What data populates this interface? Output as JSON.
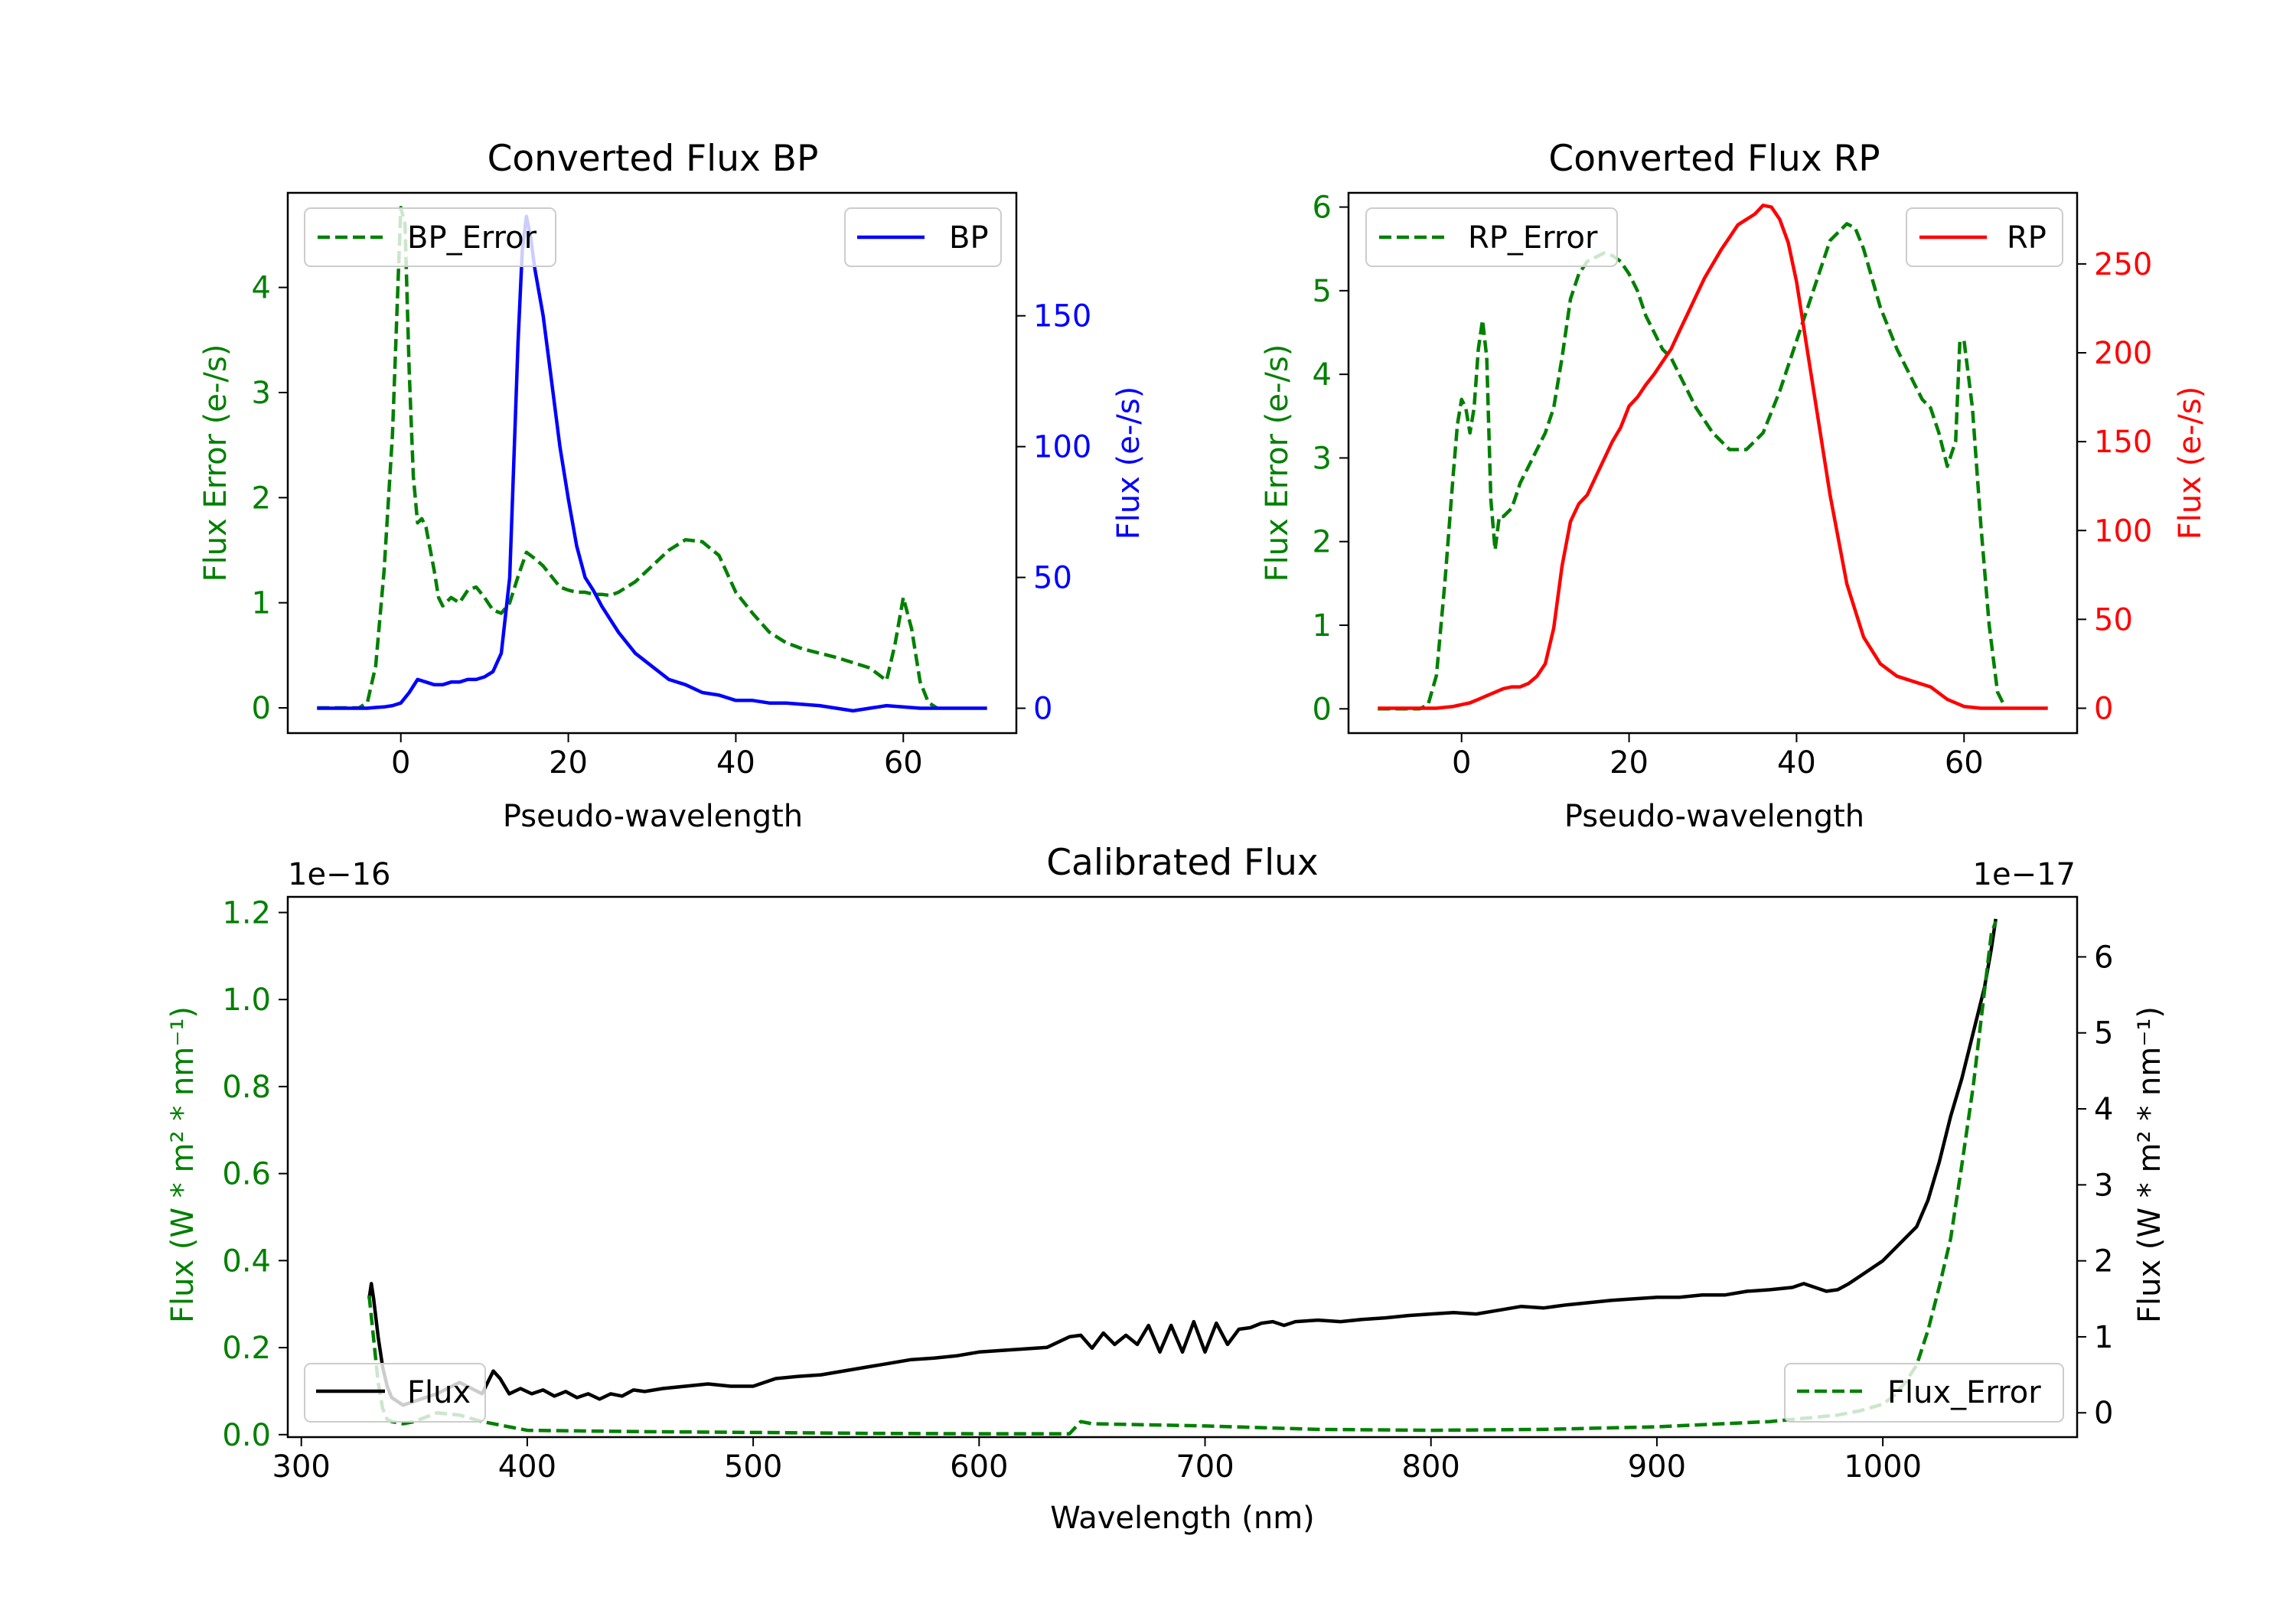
{
  "colors": {
    "green": "#008000",
    "blue": "#0000ff",
    "red": "#ff0000",
    "black": "#000000"
  },
  "chart_data": [
    {
      "id": "bp",
      "type": "line",
      "title": "Converted Flux BP",
      "xlabel": "Pseudo-wavelength",
      "ylabel_left": "Flux Error (e-/s)",
      "ylabel_right": "Flux (e-/s)",
      "xlim": [
        -13.5,
        73.5
      ],
      "ylim_left": [
        -0.24,
        4.9
      ],
      "ylim_right": [
        -9.5,
        197
      ],
      "xticks": [
        0,
        20,
        40,
        60
      ],
      "yticks_left": [
        0,
        1,
        2,
        3,
        4
      ],
      "yticks_right": [
        0,
        50,
        100,
        150
      ],
      "legend_left": "BP_Error",
      "legend_right": "BP",
      "series": [
        {
          "name": "BP_Error",
          "axis": "left",
          "color": "green",
          "dash": true,
          "x": [
            -10,
            -5,
            -4,
            -3,
            -2,
            -1,
            0,
            0.5,
            1,
            1.5,
            2,
            2.5,
            3,
            4,
            4.5,
            5,
            6,
            7,
            8,
            9,
            10,
            11,
            12,
            13,
            14,
            15,
            16,
            17,
            18,
            19,
            20,
            21,
            22,
            23,
            24,
            25,
            26,
            28,
            30,
            32,
            34,
            36,
            38,
            40,
            42,
            44,
            46,
            48,
            50,
            52,
            54,
            56,
            57,
            58,
            59,
            60,
            61,
            62,
            63,
            64
          ],
          "y": [
            0,
            0,
            0.05,
            0.4,
            1.3,
            2.6,
            4.76,
            4.6,
            3.2,
            2.2,
            1.76,
            1.8,
            1.72,
            1.3,
            1.05,
            0.97,
            1.05,
            1.0,
            1.12,
            1.15,
            1.05,
            0.93,
            0.9,
            1.0,
            1.25,
            1.48,
            1.42,
            1.35,
            1.25,
            1.15,
            1.12,
            1.1,
            1.1,
            1.08,
            1.08,
            1.07,
            1.1,
            1.2,
            1.35,
            1.5,
            1.6,
            1.58,
            1.45,
            1.1,
            0.9,
            0.72,
            0.62,
            0.56,
            0.52,
            0.48,
            0.43,
            0.38,
            0.32,
            0.26,
            0.6,
            1.05,
            0.75,
            0.25,
            0.05,
            0
          ]
        },
        {
          "name": "BP",
          "axis": "right",
          "color": "blue",
          "dash": false,
          "x": [
            -10,
            -4,
            -3,
            -2,
            -1,
            0,
            1,
            2,
            3,
            4,
            5,
            6,
            7,
            8,
            9,
            10,
            11,
            12,
            13,
            14,
            14.5,
            15,
            15.5,
            16,
            17,
            18,
            19,
            20,
            21,
            22,
            23,
            24,
            26,
            28,
            30,
            32,
            34,
            36,
            38,
            40,
            42,
            44,
            46,
            50,
            54,
            58,
            62,
            66,
            70
          ],
          "y": [
            0,
            0,
            0.3,
            0.5,
            1,
            2,
            6,
            11,
            10,
            9,
            9,
            10,
            10,
            11,
            11,
            12,
            14,
            21,
            50,
            140,
            175,
            188,
            180,
            168,
            150,
            125,
            100,
            80,
            62,
            50,
            45,
            39,
            29,
            21,
            16,
            11,
            9,
            6,
            5,
            3,
            3,
            2,
            2,
            1,
            -1,
            1,
            0,
            0,
            0
          ]
        }
      ]
    },
    {
      "id": "rp",
      "type": "line",
      "title": "Converted Flux RP",
      "xlabel": "Pseudo-wavelength",
      "ylabel_left": "Flux Error (e-/s)",
      "ylabel_right": "Flux (e-/s)",
      "xlim": [
        -13.5,
        73.5
      ],
      "ylim_left": [
        -0.29,
        6.17
      ],
      "ylim_right": [
        -14,
        290
      ],
      "xticks": [
        0,
        20,
        40,
        60
      ],
      "yticks_left": [
        0,
        1,
        2,
        3,
        4,
        5,
        6
      ],
      "yticks_right": [
        0,
        50,
        100,
        150,
        200,
        250
      ],
      "legend_left": "RP_Error",
      "legend_right": "RP",
      "series": [
        {
          "name": "RP_Error",
          "axis": "left",
          "color": "green",
          "dash": true,
          "x": [
            -10,
            -5,
            -4,
            -3,
            -2,
            -1,
            -0.5,
            0,
            0.5,
            1,
            1.5,
            2,
            2.5,
            3,
            3.5,
            4,
            4.5,
            5,
            6,
            7,
            8,
            9,
            10,
            11,
            12,
            13,
            14,
            15,
            16,
            17,
            18,
            19,
            20,
            21,
            22,
            23,
            24,
            25,
            26,
            28,
            30,
            32,
            34,
            36,
            38,
            40,
            42,
            44,
            46,
            47,
            48,
            50,
            52,
            54,
            55,
            56,
            57,
            58,
            59,
            59.5,
            60,
            61,
            62,
            63,
            64,
            65
          ],
          "y": [
            0,
            0,
            0.05,
            0.4,
            1.5,
            2.8,
            3.4,
            3.7,
            3.6,
            3.3,
            3.6,
            4.3,
            4.65,
            4.2,
            2.5,
            1.9,
            2.3,
            2.3,
            2.4,
            2.7,
            2.9,
            3.1,
            3.3,
            3.6,
            4.2,
            4.9,
            5.2,
            5.35,
            5.4,
            5.45,
            5.42,
            5.35,
            5.2,
            5.0,
            4.7,
            4.5,
            4.3,
            4.2,
            4.0,
            3.6,
            3.3,
            3.1,
            3.1,
            3.3,
            3.8,
            4.4,
            5.0,
            5.6,
            5.8,
            5.75,
            5.5,
            4.8,
            4.3,
            3.9,
            3.7,
            3.6,
            3.3,
            2.9,
            3.2,
            4.4,
            4.4,
            3.6,
            2.2,
            1.0,
            0.2,
            0
          ]
        },
        {
          "name": "RP",
          "axis": "right",
          "color": "red",
          "dash": false,
          "x": [
            -10,
            -3,
            -2,
            -1,
            0,
            1,
            2,
            3,
            4,
            5,
            6,
            7,
            8,
            9,
            10,
            11,
            12,
            13,
            14,
            15,
            16,
            17,
            18,
            19,
            20,
            21,
            22,
            23,
            24,
            25,
            26,
            27,
            28,
            29,
            30,
            31,
            32,
            33,
            34,
            35,
            36,
            37,
            38,
            39,
            40,
            42,
            44,
            46,
            48,
            50,
            52,
            54,
            56,
            58,
            60,
            62,
            64,
            66,
            70
          ],
          "y": [
            0,
            0,
            0.5,
            1,
            2,
            3,
            5,
            7,
            9,
            11,
            12,
            12,
            14,
            18,
            25,
            45,
            80,
            105,
            115,
            120,
            130,
            140,
            150,
            158,
            170,
            175,
            182,
            188,
            195,
            202,
            212,
            222,
            232,
            242,
            250,
            258,
            265,
            272,
            275,
            278,
            283,
            282,
            275,
            262,
            240,
            180,
            120,
            70,
            40,
            25,
            18,
            15,
            12,
            5,
            1,
            0,
            0,
            0,
            0
          ]
        }
      ]
    },
    {
      "id": "calibrated",
      "type": "line",
      "title": "Calibrated Flux",
      "xlabel": "Wavelength (nm)",
      "ylabel_left": "Flux (W * m² * nm⁻¹)",
      "ylabel_right": "Flux (W * m² * nm⁻¹)",
      "offset_left": "1e−16",
      "offset_right": "1e−17",
      "xlim": [
        294,
        1086
      ],
      "ylim_left": [
        -0.0057,
        1.236
      ],
      "ylim_right": [
        -0.32,
        6.79
      ],
      "xticks": [
        300,
        400,
        500,
        600,
        700,
        800,
        900,
        1000
      ],
      "yticks_left": [
        0.0,
        0.2,
        0.4,
        0.6,
        0.8,
        1.0,
        1.2
      ],
      "yticks_right": [
        0,
        1,
        2,
        3,
        4,
        5,
        6
      ],
      "ytick_labels_left": [
        "0.0",
        "0.2",
        "0.4",
        "0.6",
        "0.8",
        "1.0",
        "1.2"
      ],
      "legend_left": "Flux",
      "legend_right": "Flux_Error",
      "series": [
        {
          "name": "Flux",
          "axis": "right",
          "color": "black",
          "dash": false,
          "x": [
            330,
            331,
            332,
            334,
            336,
            338,
            340,
            345,
            350,
            360,
            370,
            380,
            385,
            388,
            392,
            397,
            402,
            407,
            412,
            417,
            422,
            427,
            432,
            437,
            442,
            447,
            452,
            460,
            470,
            480,
            490,
            500,
            510,
            520,
            530,
            540,
            550,
            560,
            570,
            580,
            590,
            600,
            610,
            620,
            630,
            640,
            645,
            650,
            655,
            660,
            665,
            670,
            675,
            680,
            685,
            690,
            695,
            700,
            705,
            710,
            715,
            720,
            725,
            730,
            735,
            740,
            750,
            760,
            770,
            780,
            790,
            800,
            810,
            820,
            830,
            840,
            850,
            860,
            870,
            880,
            890,
            900,
            910,
            920,
            930,
            940,
            950,
            960,
            965,
            970,
            975,
            980,
            985,
            990,
            1000,
            1010,
            1015,
            1020,
            1025,
            1030,
            1035,
            1040,
            1045,
            1048,
            1050
          ],
          "y": [
            1.5,
            1.7,
            1.5,
            1.0,
            0.6,
            0.35,
            0.2,
            0.1,
            0.15,
            0.25,
            0.4,
            0.25,
            0.55,
            0.45,
            0.25,
            0.32,
            0.25,
            0.3,
            0.22,
            0.28,
            0.2,
            0.25,
            0.18,
            0.25,
            0.22,
            0.3,
            0.28,
            0.32,
            0.35,
            0.38,
            0.35,
            0.35,
            0.45,
            0.48,
            0.5,
            0.55,
            0.6,
            0.65,
            0.7,
            0.72,
            0.75,
            0.8,
            0.82,
            0.84,
            0.86,
            1.0,
            1.02,
            0.85,
            1.05,
            0.9,
            1.02,
            0.9,
            1.15,
            0.8,
            1.15,
            0.8,
            1.2,
            0.8,
            1.18,
            0.9,
            1.1,
            1.12,
            1.18,
            1.2,
            1.15,
            1.2,
            1.22,
            1.2,
            1.23,
            1.25,
            1.28,
            1.3,
            1.32,
            1.3,
            1.35,
            1.4,
            1.38,
            1.42,
            1.45,
            1.48,
            1.5,
            1.52,
            1.52,
            1.55,
            1.55,
            1.6,
            1.62,
            1.65,
            1.7,
            1.65,
            1.6,
            1.62,
            1.7,
            1.8,
            2.0,
            2.3,
            2.45,
            2.8,
            3.3,
            3.9,
            4.4,
            5.0,
            5.6,
            6.1,
            6.5
          ]
        },
        {
          "name": "Flux_Error",
          "axis": "left",
          "color": "green",
          "dash": true,
          "x": [
            330,
            332,
            334,
            336,
            338,
            340,
            345,
            350,
            355,
            360,
            370,
            380,
            390,
            400,
            450,
            500,
            550,
            600,
            640,
            645,
            650,
            700,
            750,
            800,
            850,
            900,
            950,
            980,
            990,
            1000,
            1005,
            1010,
            1015,
            1020,
            1025,
            1030,
            1035,
            1040,
            1045,
            1048,
            1050
          ],
          "y": [
            0.32,
            0.22,
            0.12,
            0.06,
            0.035,
            0.03,
            0.025,
            0.03,
            0.04,
            0.05,
            0.045,
            0.03,
            0.02,
            0.01,
            0.007,
            0.005,
            0.003,
            0.002,
            0.002,
            0.03,
            0.025,
            0.02,
            0.012,
            0.01,
            0.012,
            0.018,
            0.03,
            0.045,
            0.055,
            0.07,
            0.09,
            0.12,
            0.16,
            0.24,
            0.34,
            0.45,
            0.62,
            0.8,
            1.02,
            1.15,
            1.18
          ]
        }
      ]
    }
  ]
}
